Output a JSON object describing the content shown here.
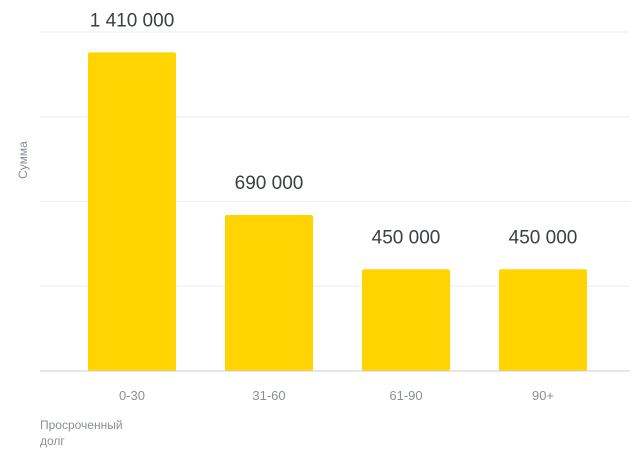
{
  "chart_data": {
    "type": "bar",
    "categories": [
      "0-30",
      "31-60",
      "61-90",
      "90+"
    ],
    "values": [
      1410000,
      690000,
      450000,
      450000
    ],
    "value_labels": [
      "1 410 000",
      "690 000",
      "450 000",
      "450 000"
    ],
    "ylabel": "Сумма",
    "xlabel_lines": [
      "Просроченный",
      "долг"
    ],
    "ylim": [
      0,
      1500000
    ],
    "grid": true,
    "bar_color": "#FFD400",
    "grid_color": "#EEEEEE",
    "axis_color": "#CCCCCC"
  }
}
